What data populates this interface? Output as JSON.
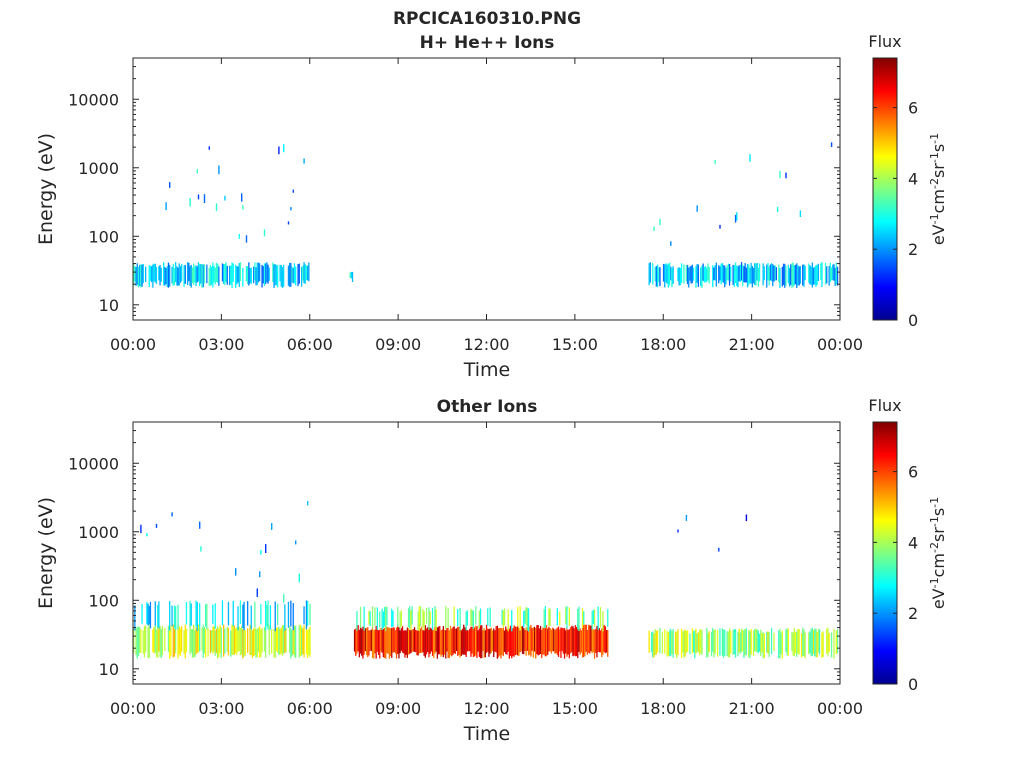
{
  "figure": {
    "title": "RPCICA160310.PNG",
    "colorbar_title": "Flux",
    "colorbar_unit": "eV-1cm-2sr-1s-1",
    "colormap": [
      "#00008f",
      "#0000ff",
      "#00ffff",
      "#ffff00",
      "#ff0000",
      "#800000"
    ]
  },
  "chart_data": [
    {
      "type": "heatmap",
      "title": "H+ He++ Ions",
      "xlabel": "Time",
      "ylabel": "Energy (eV)",
      "xticks": [
        "00:00",
        "03:00",
        "06:00",
        "09:00",
        "12:00",
        "15:00",
        "18:00",
        "21:00",
        "00:00"
      ],
      "xlim_hours": [
        0,
        24
      ],
      "yscale": "log",
      "ylim": [
        6,
        40000
      ],
      "yticks": [
        10,
        100,
        1000,
        10000
      ],
      "ytick_labels": [
        "10",
        "100",
        "1000",
        "10000"
      ],
      "colorbar": {
        "min": 0,
        "max": 7.4,
        "ticks": [
          0,
          2,
          4,
          6
        ],
        "tick_labels": [
          "0",
          "2",
          "4",
          "6"
        ]
      },
      "regions": [
        {
          "t_start": 0.0,
          "t_end": 6.0,
          "e_min": 20,
          "e_max": 38,
          "flux": 2.4,
          "density": 0.8
        },
        {
          "t_start": 7.35,
          "t_end": 7.45,
          "e_min": 24,
          "e_max": 32,
          "flux": 2.6,
          "density": 0.6
        },
        {
          "t_start": 17.5,
          "t_end": 23.9,
          "e_min": 20,
          "e_max": 38,
          "flux": 2.4,
          "density": 0.8
        },
        {
          "t_start": 0.0,
          "t_end": 6.0,
          "e_min": 80,
          "e_max": 2500,
          "flux": 2.2,
          "density": 0.1
        },
        {
          "t_start": 17.5,
          "t_end": 23.9,
          "e_min": 80,
          "e_max": 2500,
          "flux": 2.2,
          "density": 0.1
        }
      ]
    },
    {
      "type": "heatmap",
      "title": "Other Ions",
      "xlabel": "Time",
      "ylabel": "Energy (eV)",
      "xticks": [
        "00:00",
        "03:00",
        "06:00",
        "09:00",
        "12:00",
        "15:00",
        "18:00",
        "21:00",
        "00:00"
      ],
      "xlim_hours": [
        0,
        24
      ],
      "yscale": "log",
      "ylim": [
        6,
        40000
      ],
      "yticks": [
        10,
        100,
        1000,
        10000
      ],
      "ytick_labels": [
        "10",
        "100",
        "1000",
        "10000"
      ],
      "colorbar": {
        "min": 0,
        "max": 7.4,
        "ticks": [
          0,
          2,
          4,
          6
        ],
        "tick_labels": [
          "0",
          "2",
          "4",
          "6"
        ]
      },
      "regions": [
        {
          "t_start": 0.0,
          "t_end": 6.0,
          "e_min": 16,
          "e_max": 40,
          "flux": 4.3,
          "density": 0.85
        },
        {
          "t_start": 0.0,
          "t_end": 6.0,
          "e_min": 40,
          "e_max": 90,
          "flux": 2.6,
          "density": 0.35
        },
        {
          "t_start": 7.5,
          "t_end": 16.1,
          "e_min": 16,
          "e_max": 40,
          "flux": 6.3,
          "density": 1.0
        },
        {
          "t_start": 7.5,
          "t_end": 16.1,
          "e_min": 40,
          "e_max": 75,
          "flux": 3.6,
          "density": 0.4
        },
        {
          "t_start": 17.5,
          "t_end": 23.9,
          "e_min": 16,
          "e_max": 36,
          "flux": 4.0,
          "density": 0.75
        },
        {
          "t_start": 0.0,
          "t_end": 6.0,
          "e_min": 90,
          "e_max": 3000,
          "flux": 2.3,
          "density": 0.08
        },
        {
          "t_start": 17.5,
          "t_end": 23.9,
          "e_min": 90,
          "e_max": 3000,
          "flux": 1.6,
          "density": 0.03
        }
      ]
    }
  ]
}
